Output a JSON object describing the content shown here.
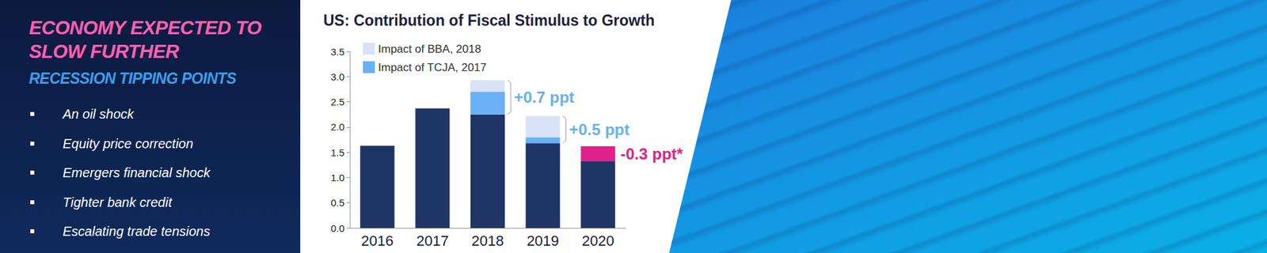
{
  "sidebar": {
    "title": [
      "ECONOMY EXPECTED TO",
      "SLOW FURTHER"
    ],
    "subtitle": "RECESSION TIPPING POINTS",
    "bullets": [
      "An oil shock",
      "Equity price correction",
      "Emergers financial shock",
      "Tighter bank credit",
      "Escalating trade tensions"
    ]
  },
  "chart_data": {
    "type": "bar",
    "title": "US: Contribution of Fiscal Stimulus to Growth",
    "categories": [
      "2016",
      "2017",
      "2018",
      "2019",
      "2020"
    ],
    "stacked": true,
    "series": [
      {
        "color": "#1f3566",
        "values": [
          1.63,
          2.37,
          2.25,
          1.68,
          1.32
        ]
      },
      {
        "name": "Impact of TCJA, 2017",
        "color": "#6ab0f5",
        "values": [
          null,
          null,
          0.45,
          0.12,
          null
        ]
      },
      {
        "name": "Impact of BBA, 2018",
        "color": "#d9e3f5",
        "values": [
          null,
          null,
          0.23,
          0.42,
          null
        ]
      },
      {
        "color": "#e0218a",
        "values": [
          null,
          null,
          null,
          null,
          0.3
        ]
      }
    ],
    "ylim": [
      0,
      3.5
    ],
    "yticks": [
      {
        "value": 0,
        "label": "0.0"
      },
      {
        "value": 0.5,
        "label": "0.5"
      },
      {
        "value": 1,
        "label": "1.0"
      },
      {
        "value": 1.5,
        "label": "1.5"
      },
      {
        "value": 2,
        "label": "2.0"
      },
      {
        "value": 2.5,
        "label": "2.5"
      },
      {
        "value": 3,
        "label": "3.0"
      },
      {
        "value": 3.5,
        "label": "3.5"
      }
    ],
    "grid": false,
    "legend": "upper left",
    "annotations": [
      {
        "category": "2018",
        "text": "+0.7 ppt",
        "color": "#6ab0f0",
        "marker": "bracket"
      },
      {
        "category": "2019",
        "text": "+0.5 ppt",
        "color": "#6ab0f0",
        "marker": "bracket"
      },
      {
        "category": "2020",
        "text": "-0.3 ppt*",
        "color": "#e0218a",
        "marker": "none"
      }
    ]
  }
}
